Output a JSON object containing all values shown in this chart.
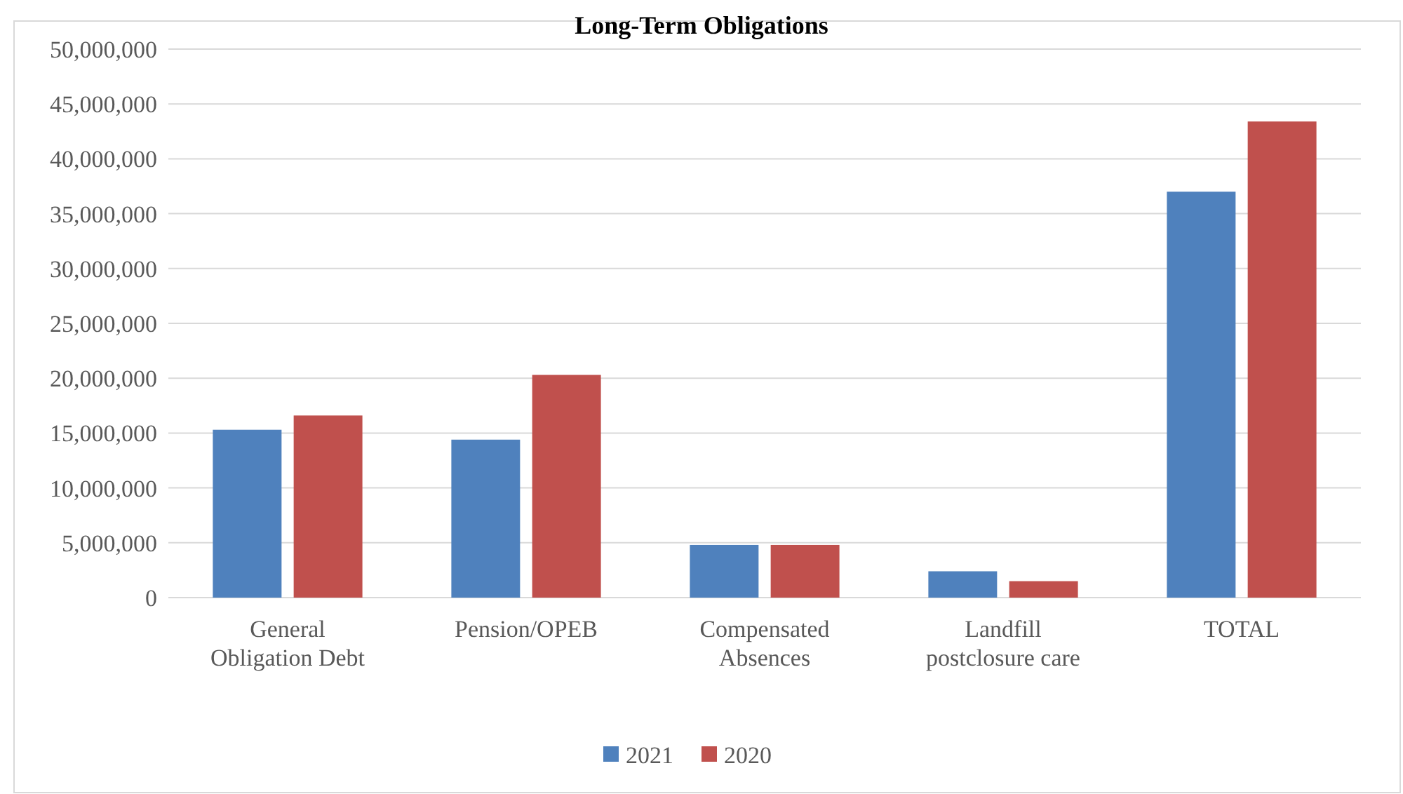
{
  "chart_data": {
    "type": "bar",
    "title": "Long-Term Obligations",
    "categories": [
      "General Obligation Debt",
      "Pension/OPEB",
      "Compensated Absences",
      "Landfill postclosure care",
      "TOTAL"
    ],
    "series": [
      {
        "name": "2021",
        "color": "#4f81bd",
        "values": [
          15300000,
          14400000,
          4800000,
          2400000,
          37000000
        ]
      },
      {
        "name": "2020",
        "color": "#c0504d",
        "values": [
          16600000,
          20300000,
          4800000,
          1500000,
          43400000
        ]
      }
    ],
    "ylim": [
      0,
      50000000
    ],
    "yticks": [
      {
        "value": 0,
        "label": "0"
      },
      {
        "value": 5000000,
        "label": "5,000,000"
      },
      {
        "value": 10000000,
        "label": "10,000,000"
      },
      {
        "value": 15000000,
        "label": "15,000,000"
      },
      {
        "value": 20000000,
        "label": "20,000,000"
      },
      {
        "value": 25000000,
        "label": "25,000,000"
      },
      {
        "value": 30000000,
        "label": "30,000,000"
      },
      {
        "value": 35000000,
        "label": "35,000,000"
      },
      {
        "value": 40000000,
        "label": "40,000,000"
      },
      {
        "value": 45000000,
        "label": "45,000,000"
      },
      {
        "value": 50000000,
        "label": "50,000,000"
      }
    ],
    "grid": "y",
    "legend": "bottom"
  }
}
